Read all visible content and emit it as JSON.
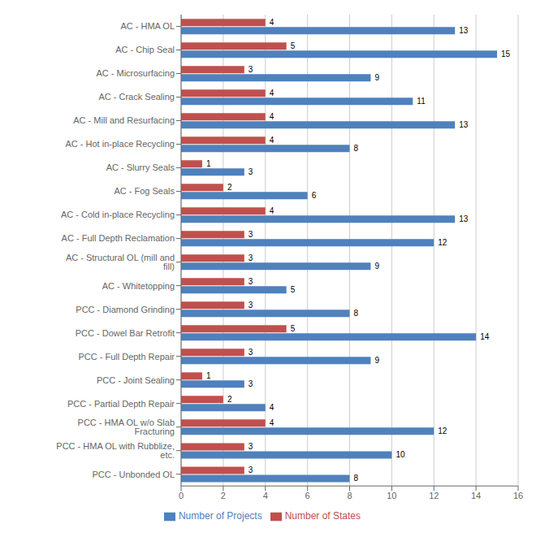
{
  "chart_data": {
    "type": "bar",
    "orientation": "horizontal",
    "categories": [
      "AC - HMA OL",
      "AC - Chip Seal",
      "AC - Microsurfacing",
      "AC - Crack Sealing",
      "AC - Mill and Resurfacing",
      "AC - Hot in-place Recycling",
      "AC - Slurry Seals",
      "AC - Fog Seals",
      "AC - Cold in-place Recycling",
      "AC - Full Depth Reclamation",
      "AC - Structural OL (mill and fill)",
      "AC - Whitetopping",
      "PCC - Diamond Grinding",
      "PCC - Dowel Bar Retrofit",
      "PCC - Full Depth Repair",
      "PCC - Joint Sealing",
      "PCC - Partial Depth Repair",
      "PCC - HMA OL w/o Slab Fracturing",
      "PCC - HMA OL with Rubblize, etc.",
      "PCC - Unbonded OL"
    ],
    "series": [
      {
        "name": "Number of States",
        "color": "#C0504D",
        "values": [
          4,
          5,
          3,
          4,
          4,
          4,
          1,
          2,
          4,
          3,
          3,
          3,
          3,
          5,
          3,
          1,
          2,
          4,
          3,
          3
        ]
      },
      {
        "name": "Number of Projects",
        "color": "#4F81BD",
        "values": [
          13,
          15,
          9,
          11,
          13,
          8,
          3,
          6,
          13,
          12,
          9,
          5,
          8,
          14,
          9,
          3,
          4,
          12,
          10,
          8
        ]
      }
    ],
    "xlim": [
      0,
      16
    ],
    "xticks": [
      0,
      2,
      4,
      6,
      8,
      10,
      12,
      14,
      16
    ],
    "grid": true,
    "legend": "bottom",
    "data_labels": true
  }
}
